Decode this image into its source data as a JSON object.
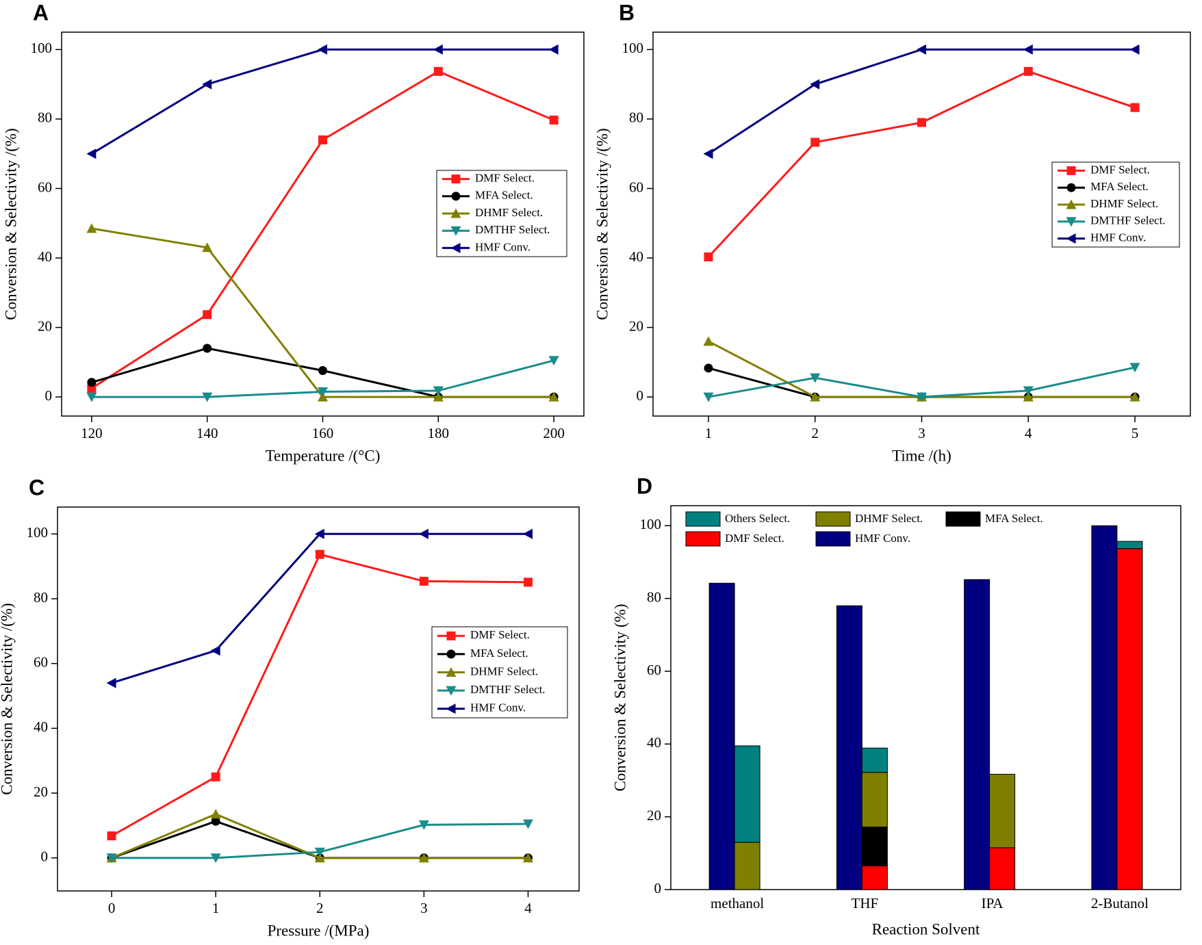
{
  "chart_data": [
    {
      "type": "line",
      "label": "A",
      "xlabel": "Temperature /(°C)",
      "ylabel": "Conversion & Selectivity /(%)",
      "x": [
        120,
        140,
        160,
        180,
        200
      ],
      "xlim": [
        114.8,
        205.2
      ],
      "xticks": [
        120,
        140,
        160,
        180,
        200
      ],
      "ylim": [
        -5.5,
        105
      ],
      "yticks": [
        0,
        20,
        40,
        60,
        80,
        100
      ],
      "series": [
        {
          "name": "DMF Select.",
          "color": "#ff1a1a",
          "marker": "square",
          "values": [
            2.5,
            23.7,
            74,
            93.7,
            79.7
          ]
        },
        {
          "name": "MFA Select.",
          "color": "#000000",
          "marker": "circle",
          "values": [
            4.2,
            14,
            7.6,
            0,
            0
          ]
        },
        {
          "name": "DHMF Select.",
          "color": "#808000",
          "marker": "triangle-up",
          "values": [
            48.5,
            43,
            0,
            0,
            0
          ]
        },
        {
          "name": "DMTHF Select.",
          "color": "#1a8c8c",
          "marker": "triangle-down",
          "values": [
            0,
            0,
            1.5,
            1.8,
            10.5
          ]
        },
        {
          "name": "HMF Conv.",
          "color": "#000080",
          "marker": "triangle-left",
          "values": [
            70,
            90,
            100,
            100,
            100
          ]
        }
      ]
    },
    {
      "type": "line",
      "label": "B",
      "xlabel": "Time /(h)",
      "ylabel": "Conversion & Selectivity /(%)",
      "x": [
        1,
        2,
        3,
        4,
        5
      ],
      "xlim": [
        0.48,
        5.52
      ],
      "xticks": [
        1,
        2,
        3,
        4,
        5
      ],
      "ylim": [
        -5.5,
        105
      ],
      "yticks": [
        0,
        20,
        40,
        60,
        80,
        100
      ],
      "series": [
        {
          "name": "DMF Select.",
          "color": "#ff1a1a",
          "marker": "square",
          "values": [
            40.3,
            73.3,
            79,
            93.7,
            83.3
          ]
        },
        {
          "name": "MFA Select.",
          "color": "#000000",
          "marker": "circle",
          "values": [
            8.3,
            0,
            0,
            0,
            0
          ]
        },
        {
          "name": "DHMF Select.",
          "color": "#808000",
          "marker": "triangle-up",
          "values": [
            16,
            0,
            0,
            0,
            0
          ]
        },
        {
          "name": "DMTHF Select.",
          "color": "#1a8c8c",
          "marker": "triangle-down",
          "values": [
            0,
            5.5,
            0,
            1.8,
            8.5
          ]
        },
        {
          "name": "HMF Conv.",
          "color": "#000080",
          "marker": "triangle-left",
          "values": [
            70,
            90,
            100,
            100,
            100
          ]
        }
      ]
    },
    {
      "type": "line",
      "label": "C",
      "xlabel": "Pressure /(MPa)",
      "ylabel": "Conversion & Selectivity /(%)",
      "x": [
        0,
        1,
        2,
        3,
        4
      ],
      "xlim": [
        -0.52,
        4.49
      ],
      "xticks": [
        0,
        1,
        2,
        3,
        4
      ],
      "ylim": [
        -10.2,
        108.3
      ],
      "yticks": [
        0,
        20,
        40,
        60,
        80,
        100
      ],
      "series": [
        {
          "name": "DMF Select.",
          "color": "#ff1a1a",
          "marker": "square",
          "values": [
            6.8,
            25,
            93.7,
            85.4,
            85.1
          ]
        },
        {
          "name": "MFA Select.",
          "color": "#000000",
          "marker": "circle",
          "values": [
            0,
            11.3,
            0,
            0,
            0
          ]
        },
        {
          "name": "DHMF Select.",
          "color": "#808000",
          "marker": "triangle-up",
          "values": [
            0,
            13.5,
            0,
            0,
            0
          ]
        },
        {
          "name": "DMTHF Select.",
          "color": "#1a8c8c",
          "marker": "triangle-down",
          "values": [
            0,
            0,
            1.8,
            10.2,
            10.5
          ]
        },
        {
          "name": "HMF Conv.",
          "color": "#000080",
          "marker": "triangle-left",
          "values": [
            54,
            64,
            100,
            100,
            100
          ]
        }
      ]
    },
    {
      "type": "bar",
      "label": "D",
      "xlabel": "Reaction Solvent",
      "ylabel": "Conversion & Selectivity (%)",
      "categories": [
        "methanol",
        "THF",
        "IPA",
        "2-Butanol"
      ],
      "ylim": [
        0,
        105.5
      ],
      "yticks": [
        0,
        20,
        40,
        60,
        80,
        100
      ],
      "series": [
        {
          "name": "HMF Conv.",
          "color": "#000080",
          "values": [
            84.2,
            78,
            85.2,
            100
          ]
        },
        {
          "name": "DMF Select.",
          "color": "#ff0000",
          "values": [
            0,
            6.5,
            11.5,
            93.7
          ]
        },
        {
          "name": "MFA Select.",
          "color": "#000000",
          "values": [
            0,
            10.7,
            0,
            0
          ]
        },
        {
          "name": "DHMF Select.",
          "color": "#808000",
          "values": [
            13,
            15,
            20.2,
            0
          ]
        },
        {
          "name": "Others Select.",
          "color": "#008080",
          "values": [
            26.5,
            6.7,
            0,
            2
          ]
        }
      ]
    }
  ]
}
